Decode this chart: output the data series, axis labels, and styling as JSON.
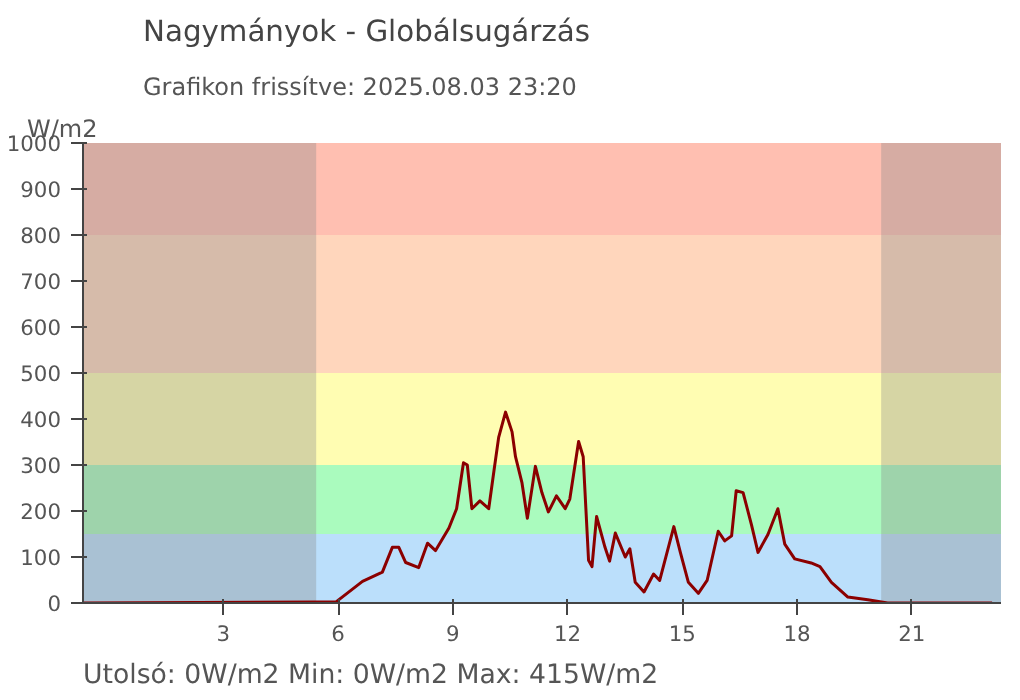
{
  "chart_data": {
    "type": "line",
    "title": "Nagymányok - Globálsugárzás",
    "subtitle": "Grafikon frissítve: 2025.08.03 23:20",
    "ylabel": "W/m2",
    "annotations": [
      "Utolsó: 0W/m2  Min: 0W/m2  Max: 415W/m2"
    ],
    "x": [
      -0.667,
      5.4,
      5.94,
      6.64,
      7.16,
      7.42,
      7.59,
      7.77,
      8.11,
      8.34,
      8.55,
      8.9,
      9.1,
      9.28,
      9.38,
      9.5,
      9.71,
      9.94,
      10.08,
      10.2,
      10.38,
      10.55,
      10.64,
      10.81,
      10.95,
      11.16,
      11.33,
      11.5,
      11.71,
      11.94,
      12.06,
      12.29,
      12.41,
      12.55,
      12.64,
      12.76,
      12.98,
      13.1,
      13.25,
      13.51,
      13.63,
      13.77,
      14.0,
      14.25,
      14.41,
      14.78,
      14.95,
      15.16,
      15.42,
      15.65,
      15.94,
      16.11,
      16.29,
      16.41,
      16.59,
      16.81,
      16.98,
      17.24,
      17.5,
      17.68,
      17.94,
      18.37,
      18.6,
      18.9,
      19.33,
      19.85,
      20.37,
      23.1
    ],
    "series": [
      {
        "color": "#8b0000",
        "values": [
          0,
          2,
          2,
          47,
          67,
          121,
          121,
          88,
          77,
          130,
          114,
          163,
          205,
          305,
          300,
          205,
          222,
          205,
          289,
          360,
          415,
          372,
          318,
          261,
          184,
          297,
          240,
          198,
          233,
          205,
          226,
          351,
          318,
          93,
          79,
          188,
          121,
          91,
          152,
          100,
          118,
          45,
          24,
          63,
          49,
          166,
          110,
          45,
          21,
          49,
          156,
          135,
          146,
          244,
          240,
          170,
          110,
          149,
          205,
          128,
          96,
          87,
          79,
          45,
          13,
          7,
          0,
          0
        ]
      }
    ],
    "xlim": [
      -0.667,
      23.333
    ],
    "ylim": [
      0,
      1000
    ],
    "xticks": [
      3,
      6,
      9,
      12,
      15,
      18,
      21
    ],
    "yticks": [
      0,
      100,
      200,
      300,
      400,
      500,
      600,
      700,
      800,
      900,
      1000
    ],
    "bands": [
      {
        "axis": "y",
        "from": 0,
        "to": 150,
        "color": "#bbdffb"
      },
      {
        "axis": "y",
        "from": 150,
        "to": 300,
        "color": "#aafbbe"
      },
      {
        "axis": "y",
        "from": 300,
        "to": 500,
        "color": "#fffdb2"
      },
      {
        "axis": "y",
        "from": 500,
        "to": 800,
        "color": "#ffd6bc"
      },
      {
        "axis": "y",
        "from": 800,
        "to": 1000,
        "color": "#ffbfb1"
      },
      {
        "axis": "x",
        "from": -0.667,
        "to": 5.43,
        "color": "#8a8a8a"
      },
      {
        "axis": "x",
        "from": 20.2,
        "to": 23.333,
        "color": "#8a8a8a"
      }
    ],
    "marker": "none",
    "line_style": "solid"
  }
}
